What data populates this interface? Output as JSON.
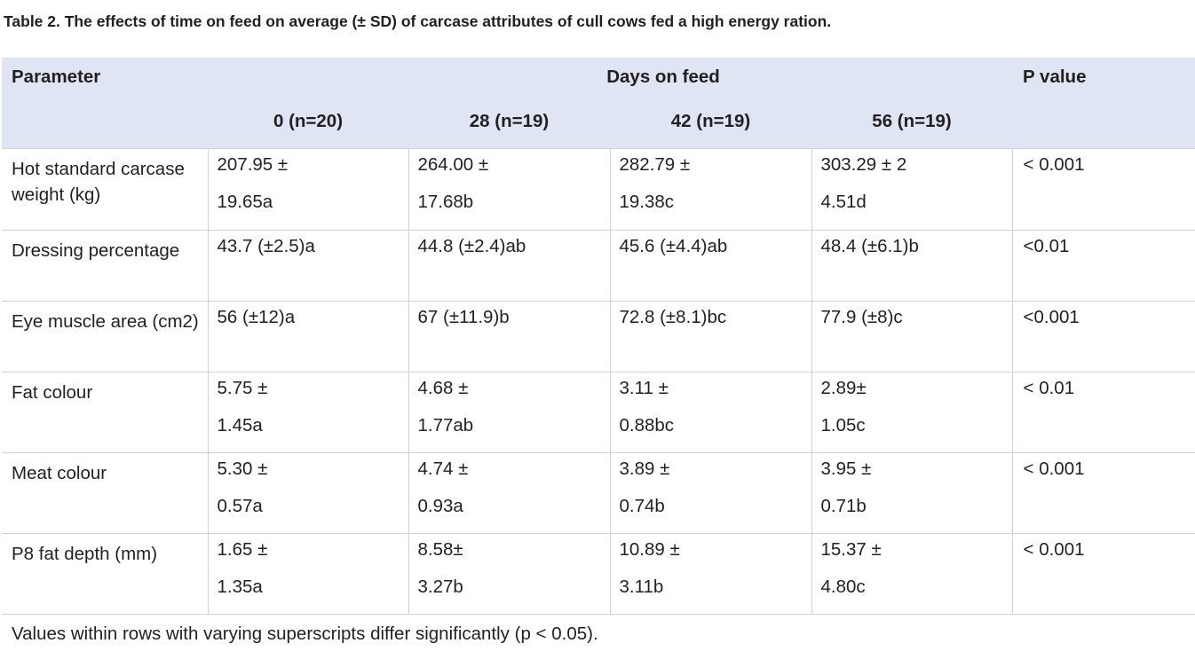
{
  "caption": "Table 2. The effects of time on feed on average (± SD) of carcase attributes of cull cows fed a high energy ration.",
  "header": {
    "parameter": "Parameter",
    "days_on_feed": "Days on feed",
    "p_value": "P value",
    "groups": [
      "0 (n=20)",
      "28 (n=19)",
      "42 (n=19)",
      "56 (n=19)"
    ]
  },
  "rows": [
    {
      "parameter": "Hot standard carcase weight (kg)",
      "values": [
        [
          "207.95 ±",
          "19.65a"
        ],
        [
          "264.00 ±",
          "17.68b"
        ],
        [
          "282.79 ±",
          "19.38c"
        ],
        [
          "303.29 ± 2",
          "4.51d"
        ]
      ],
      "p": "< 0.001"
    },
    {
      "parameter": "Dressing percentage",
      "values": [
        [
          "43.7 (±2.5)a"
        ],
        [
          "44.8 (±2.4)ab"
        ],
        [
          "45.6 (±4.4)ab"
        ],
        [
          "48.4 (±6.1)b"
        ]
      ],
      "p": "<0.01"
    },
    {
      "parameter": "Eye muscle area (cm2)",
      "values": [
        [
          "56 (±12)a"
        ],
        [
          "67 (±11.9)b"
        ],
        [
          "72.8 (±8.1)bc"
        ],
        [
          "77.9 (±8)c"
        ]
      ],
      "p": "<0.001"
    },
    {
      "parameter": "Fat colour",
      "values": [
        [
          "5.75 ±",
          "1.45a"
        ],
        [
          "4.68 ±",
          "1.77ab"
        ],
        [
          "3.11 ±",
          "0.88bc"
        ],
        [
          "2.89±",
          "1.05c"
        ]
      ],
      "p": "< 0.01"
    },
    {
      "parameter": "Meat colour",
      "values": [
        [
          "5.30 ±",
          "0.57a"
        ],
        [
          "4.74 ±",
          "0.93a"
        ],
        [
          "3.89 ±",
          "0.74b"
        ],
        [
          "3.95 ±",
          "0.71b"
        ]
      ],
      "p": "< 0.001"
    },
    {
      "parameter": "P8 fat depth (mm)",
      "values": [
        [
          "1.65 ±",
          "1.35a"
        ],
        [
          "8.58±",
          "3.27b"
        ],
        [
          "10.89 ±",
          "3.11b"
        ],
        [
          "15.37 ±",
          "4.80c"
        ]
      ],
      "p": "< 0.001"
    }
  ],
  "footnote": "Values within rows with varying superscripts differ significantly (p < 0.05)."
}
